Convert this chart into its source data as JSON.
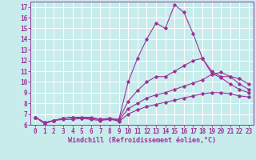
{
  "title": "",
  "xlabel": "Windchill (Refroidissement éolien,°C)",
  "background_color": "#c8ecec",
  "line_color": "#993399",
  "grid_color": "#ffffff",
  "xlim": [
    -0.5,
    23.5
  ],
  "ylim": [
    6,
    17.5
  ],
  "xticks": [
    0,
    1,
    2,
    3,
    4,
    5,
    6,
    7,
    8,
    9,
    10,
    11,
    12,
    13,
    14,
    15,
    16,
    17,
    18,
    19,
    20,
    21,
    22,
    23
  ],
  "yticks": [
    6,
    7,
    8,
    9,
    10,
    11,
    12,
    13,
    14,
    15,
    16,
    17
  ],
  "lines": [
    {
      "x": [
        0,
        1,
        2,
        3,
        4,
        5,
        6,
        7,
        8,
        9,
        10,
        11,
        12,
        13,
        14,
        15,
        16,
        17,
        18,
        19,
        20,
        21,
        22,
        23
      ],
      "y": [
        6.7,
        6.1,
        6.4,
        6.5,
        6.5,
        6.6,
        6.5,
        6.4,
        6.5,
        6.5,
        10.0,
        12.2,
        14.0,
        15.5,
        15.0,
        17.2,
        16.5,
        14.5,
        12.2,
        10.8,
        10.4,
        9.8,
        9.3,
        9.0
      ]
    },
    {
      "x": [
        0,
        1,
        2,
        3,
        4,
        5,
        6,
        7,
        8,
        9,
        10,
        11,
        12,
        13,
        14,
        15,
        16,
        17,
        18,
        19,
        20,
        21,
        22,
        23
      ],
      "y": [
        6.7,
        6.2,
        6.4,
        6.6,
        6.7,
        6.7,
        6.6,
        6.5,
        6.6,
        6.5,
        8.2,
        9.2,
        10.0,
        10.5,
        10.5,
        11.0,
        11.5,
        12.0,
        12.2,
        11.0,
        10.5,
        10.5,
        10.3,
        9.8
      ]
    },
    {
      "x": [
        0,
        1,
        2,
        3,
        4,
        5,
        6,
        7,
        8,
        9,
        10,
        11,
        12,
        13,
        14,
        15,
        16,
        17,
        18,
        19,
        20,
        21,
        22,
        23
      ],
      "y": [
        6.7,
        6.2,
        6.4,
        6.6,
        6.7,
        6.6,
        6.6,
        6.5,
        6.5,
        6.4,
        7.5,
        8.0,
        8.5,
        8.8,
        9.0,
        9.3,
        9.6,
        9.9,
        10.2,
        10.7,
        10.9,
        10.5,
        9.8,
        9.3
      ]
    },
    {
      "x": [
        0,
        1,
        2,
        3,
        4,
        5,
        6,
        7,
        8,
        9,
        10,
        11,
        12,
        13,
        14,
        15,
        16,
        17,
        18,
        19,
        20,
        21,
        22,
        23
      ],
      "y": [
        6.7,
        6.2,
        6.4,
        6.6,
        6.7,
        6.7,
        6.7,
        6.5,
        6.6,
        6.3,
        7.0,
        7.4,
        7.7,
        7.9,
        8.1,
        8.3,
        8.5,
        8.7,
        8.9,
        9.0,
        9.0,
        8.9,
        8.7,
        8.6
      ]
    }
  ]
}
